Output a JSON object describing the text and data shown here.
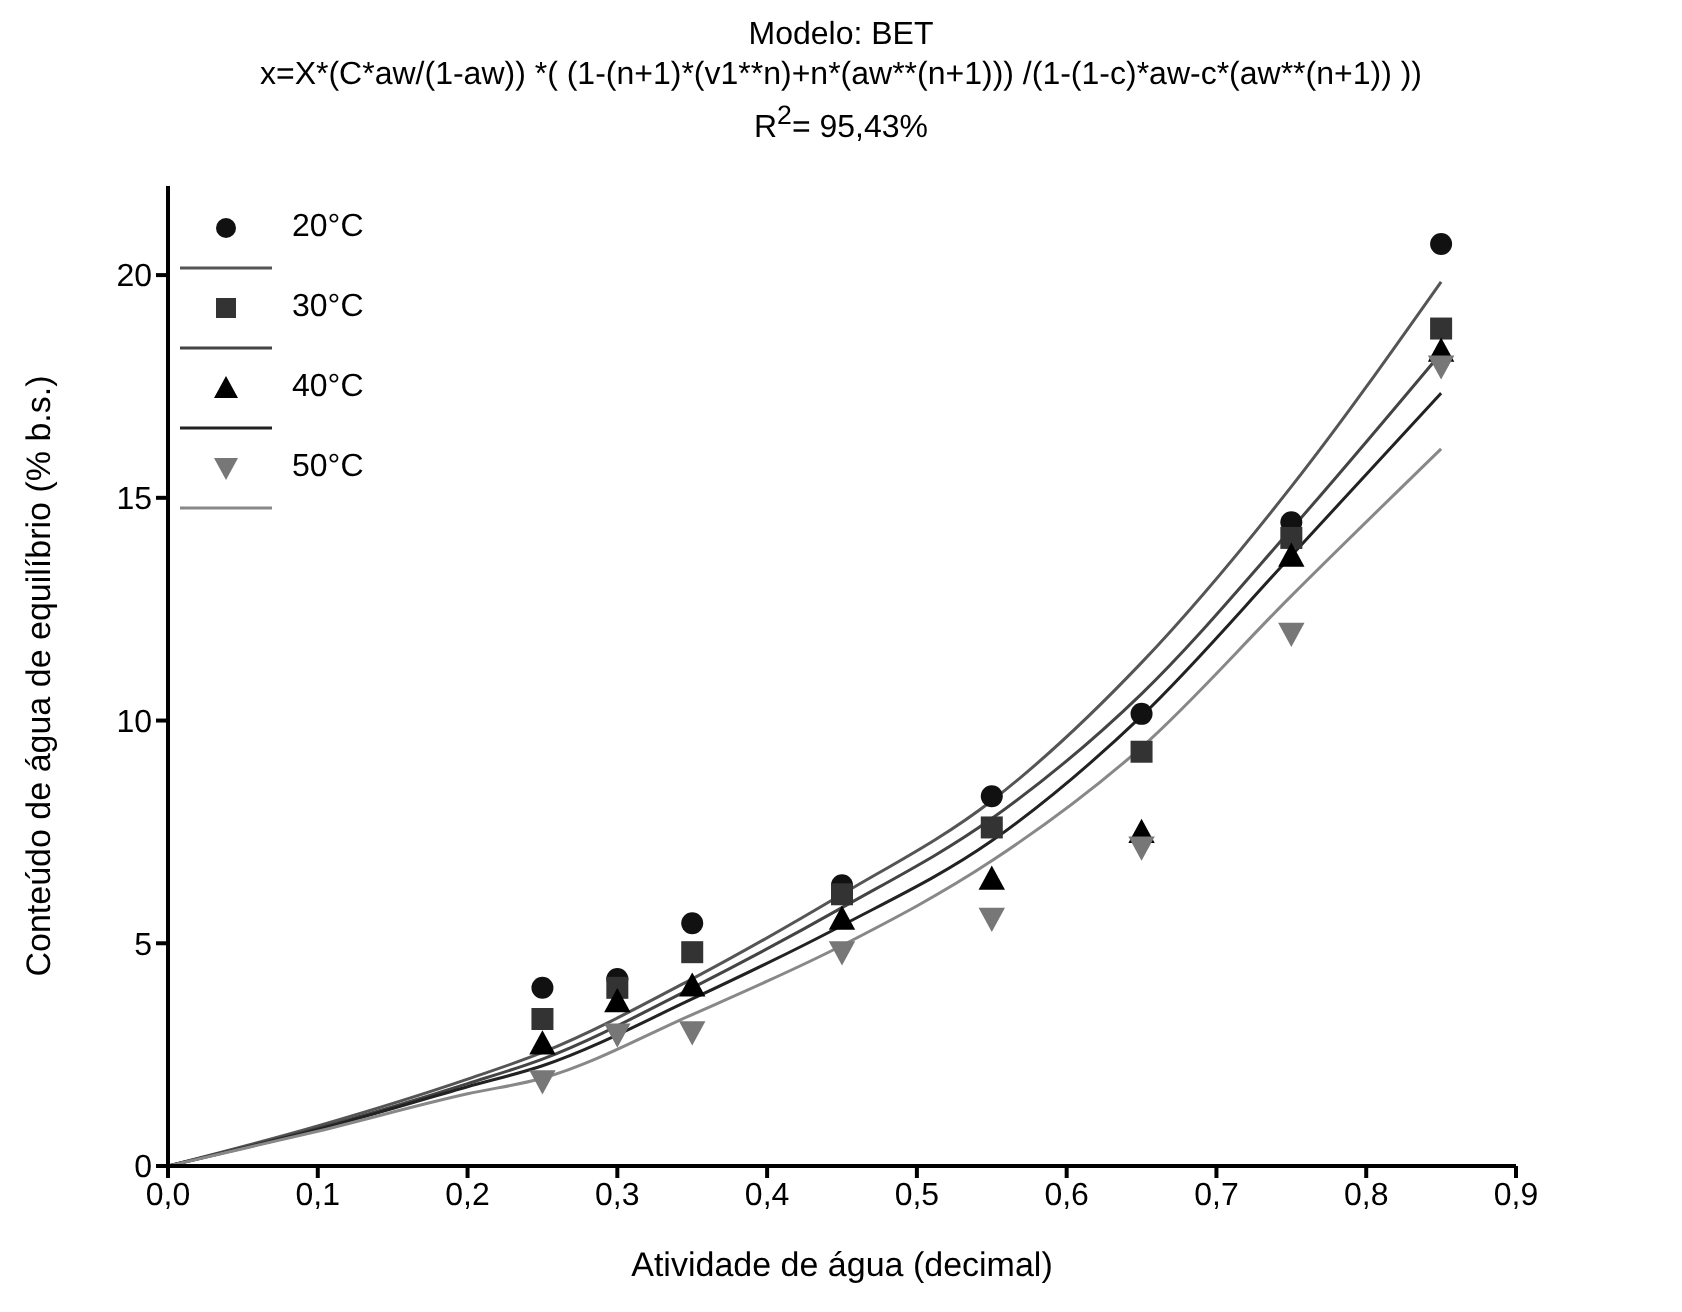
{
  "chart_data": {
    "type": "scatter",
    "title": "Modelo: BET",
    "subtitle": "x=X*(C*aw/(1-aw)) *( (1-(n+1)*(v1**n)+n*(aw**(n+1))) /(1-(1-c)*aw-c*(aw**(n+1)) ))",
    "annotations": [
      "R$^{2}$= 95,43%"
    ],
    "xlabel": "Atividade de água (decimal)",
    "ylabel": "Conteúdo de água de equilíbrio (% b.s.)",
    "x": [
      0.25,
      0.3,
      0.35,
      0.45,
      0.55,
      0.65,
      0.75,
      0.85
    ],
    "series": [
      {
        "name": "20°C",
        "marker": "circle",
        "color": "#111111",
        "values": [
          4.0,
          4.2,
          5.45,
          6.3,
          8.3,
          10.15,
          14.45,
          20.7
        ]
      },
      {
        "type": "line",
        "color": "#555555",
        "x": [
          0,
          0.1,
          0.2,
          0.25,
          0.35,
          0.45,
          0.55,
          0.65,
          0.75,
          0.85
        ],
        "values": [
          0,
          0.9,
          1.95,
          2.55,
          4.2,
          6.1,
          8.2,
          11.3,
          15.25,
          19.85
        ]
      },
      {
        "name": "30°C",
        "marker": "square",
        "color": "#333333",
        "values": [
          3.3,
          4.0,
          4.8,
          6.1,
          7.6,
          9.3,
          14.1,
          18.8
        ]
      },
      {
        "type": "line",
        "color": "#444444",
        "x": [
          0,
          0.1,
          0.2,
          0.25,
          0.35,
          0.45,
          0.55,
          0.65,
          0.75,
          0.85
        ],
        "values": [
          0,
          0.85,
          1.85,
          2.4,
          4.0,
          5.8,
          7.8,
          10.6,
          14.3,
          18.25
        ]
      },
      {
        "name": "40°C",
        "marker": "triangle",
        "color": "#000000",
        "values": [
          2.75,
          3.7,
          4.05,
          5.55,
          6.45,
          7.5,
          13.7,
          18.3
        ]
      },
      {
        "type": "line",
        "color": "#222222",
        "x": [
          0,
          0.1,
          0.2,
          0.25,
          0.35,
          0.45,
          0.55,
          0.65,
          0.75,
          0.85
        ],
        "values": [
          0,
          0.82,
          1.78,
          2.25,
          3.75,
          5.4,
          7.3,
          10.1,
          13.7,
          17.35
        ]
      },
      {
        "name": "50°C",
        "marker": "triangle_down",
        "color": "#777777",
        "values": [
          1.9,
          2.95,
          3.0,
          4.8,
          5.55,
          7.15,
          11.95,
          17.95
        ]
      },
      {
        "type": "line",
        "color": "#888888",
        "x": [
          0,
          0.1,
          0.2,
          0.25,
          0.35,
          0.45,
          0.55,
          0.65,
          0.75,
          0.85
        ],
        "values": [
          0,
          0.78,
          1.62,
          1.97,
          3.4,
          4.95,
          6.85,
          9.4,
          12.8,
          16.1
        ]
      }
    ],
    "xlim": [
      0,
      0.9
    ],
    "xticks": [
      {
        "value": 0,
        "label": "0,0"
      },
      {
        "value": 0.1,
        "label": "0,1"
      },
      {
        "value": 0.2,
        "label": "0,2"
      },
      {
        "value": 0.3,
        "label": "0,3"
      },
      {
        "value": 0.4,
        "label": "0,4"
      },
      {
        "value": 0.5,
        "label": "0,5"
      },
      {
        "value": 0.6,
        "label": "0,6"
      },
      {
        "value": 0.7,
        "label": "0,7"
      },
      {
        "value": 0.8,
        "label": "0,8"
      },
      {
        "value": 0.9,
        "label": "0,9"
      }
    ],
    "ylim": [
      0,
      22
    ],
    "yticks": [
      0,
      5,
      10,
      15,
      20
    ],
    "legend": "top left"
  }
}
